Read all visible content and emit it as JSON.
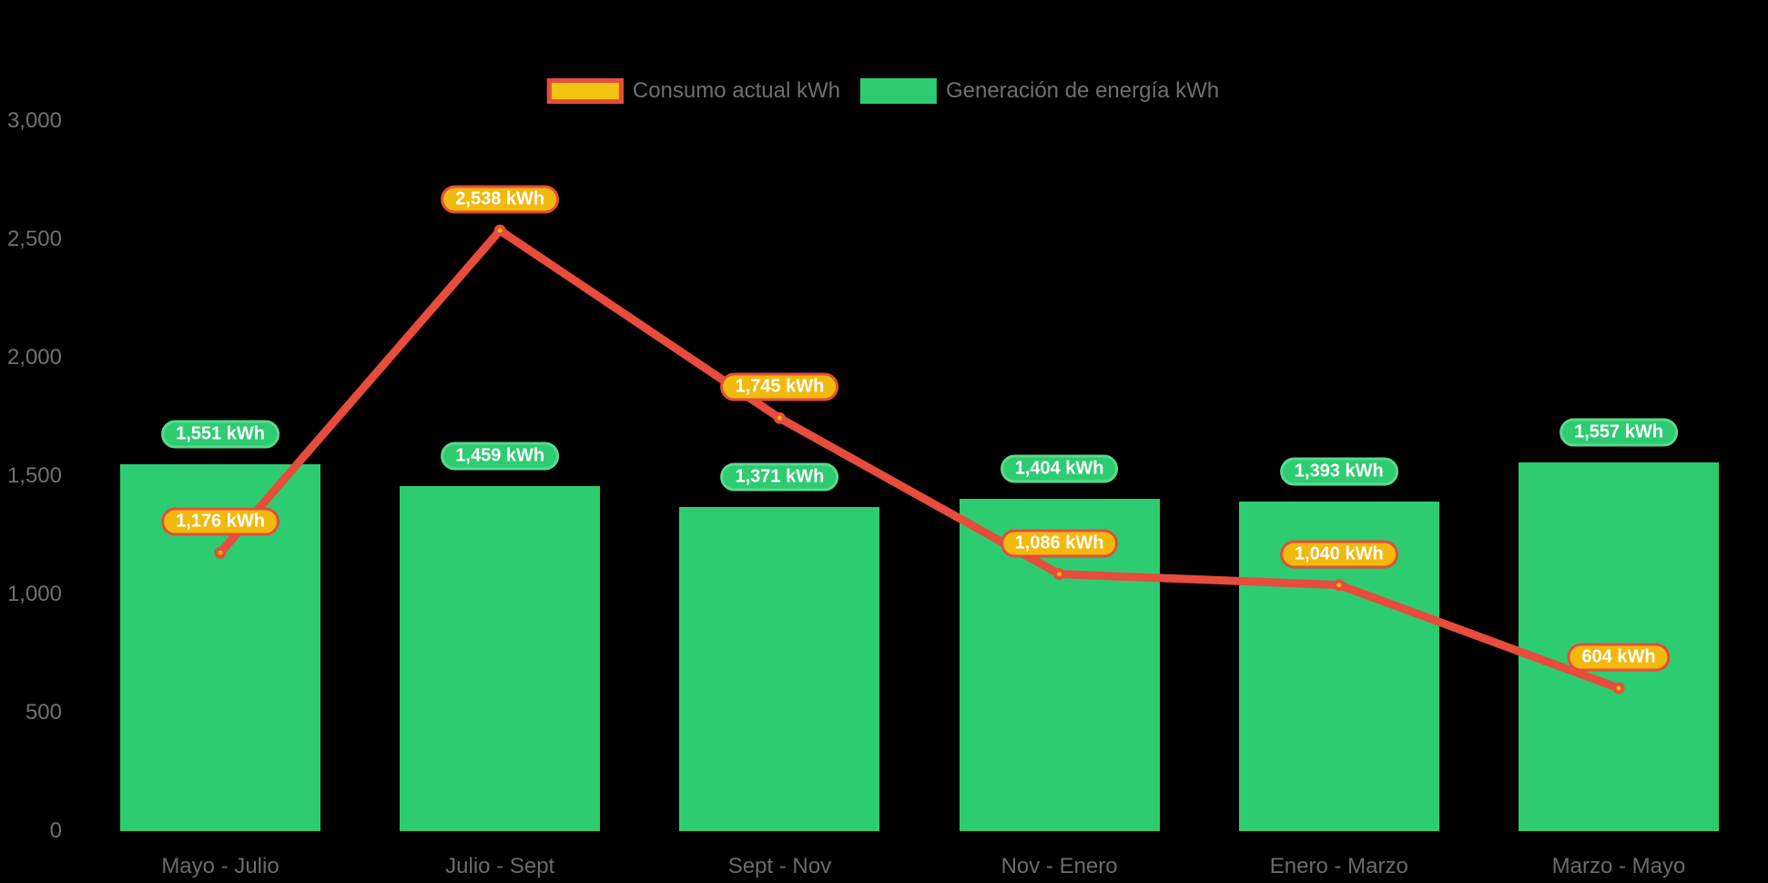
{
  "chart_data": {
    "type": "composed-bar-line",
    "title": "",
    "xlabel": "",
    "ylabel": "",
    "background": "#000000",
    "grid": false,
    "legend_position": "top-center",
    "axis_text_color": "#707070",
    "ylim": [
      0,
      3000
    ],
    "y_ticks": [
      0,
      500,
      1000,
      1500,
      2000,
      2500,
      3000
    ],
    "y_tick_labels": [
      "0",
      "500",
      "1,000",
      "1,500",
      "2,000",
      "2,500",
      "3,000"
    ],
    "categories": [
      "Mayo - Julio",
      "Julio - Sept",
      "Sept - Nov",
      "Nov - Enero",
      "Enero - Marzo",
      "Marzo - Mayo"
    ],
    "series": [
      {
        "name": "Consumo actual kWh",
        "type": "line",
        "values": [
          1176,
          2538,
          1745,
          1086,
          1040,
          604
        ],
        "labels": [
          "1,176 kWh",
          "2,538 kWh",
          "1,745 kWh",
          "1,086 kWh",
          "1,040 kWh",
          "604 kWh"
        ],
        "line_color": "#e74c3c",
        "point_fill": "#f2b90d",
        "point_stroke": "#e74c3c",
        "label_bg": "#f2b90d",
        "label_border": "#e74c3c"
      },
      {
        "name": "Generación de energía kWh",
        "type": "bar",
        "values": [
          1551,
          1459,
          1371,
          1404,
          1393,
          1557
        ],
        "labels": [
          "1,551 kWh",
          "1,459 kWh",
          "1,371 kWh",
          "1,404 kWh",
          "1,393 kWh",
          "1,557 kWh"
        ],
        "bar_color": "#2ecc71",
        "label_bg": "#2ecc71",
        "label_border": "#5ad98e"
      }
    ],
    "data_label_unit": "kWh"
  }
}
